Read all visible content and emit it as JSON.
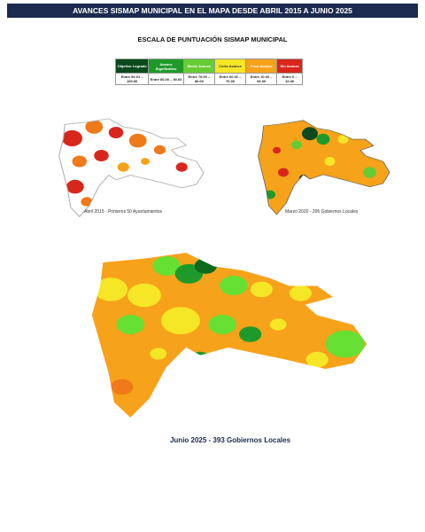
{
  "header": {
    "title": "AVANCES SISMAP MUNICIPAL EN EL MAPA DESDE ABRIL 2015 A JUNIO 2025"
  },
  "scale": {
    "title": "ESCALA DE PUNTUACIÓN SISMAP MUNICIPAL",
    "columns": [
      {
        "label": "Objetivo Logrado",
        "range": "Entre 90.01 – 100.00"
      },
      {
        "label": "Avance Significativo",
        "range": "Entre 80.00 – 90.00"
      },
      {
        "label": "Medio Avance",
        "range": "Entre 70.00 – 80.00"
      },
      {
        "label": "Corto Avance",
        "range": "Entre 60.01 – 70.00"
      },
      {
        "label": "Poco Avance",
        "range": "Entre 10.00 – 60.00"
      },
      {
        "label": "Sin Avance",
        "range": "Entre 0 – 10.00"
      }
    ]
  },
  "maps": [
    {
      "caption": "Abril 2015 - Primeros 50 Ayuntamientos"
    },
    {
      "caption": "Marzo 2020 - 205 Gobiernos Locales"
    },
    {
      "caption": "Junio 2025 - 393 Gobiernos Locales"
    }
  ]
}
